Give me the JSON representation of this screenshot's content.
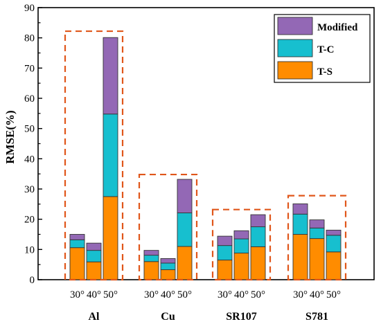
{
  "chart_data": {
    "type": "bar",
    "stacked": true,
    "ylabel": "RMSE(%)",
    "ylim": [
      0,
      90
    ],
    "yticks": [
      0,
      10,
      20,
      30,
      40,
      50,
      60,
      70,
      80,
      90
    ],
    "legend_position": "top-right",
    "grid": false,
    "groups": [
      {
        "label": "Al",
        "categories": [
          "30°",
          "40°",
          "50°"
        ]
      },
      {
        "label": "Cu",
        "categories": [
          "30°",
          "40°",
          "50°"
        ]
      },
      {
        "label": "SR107",
        "categories": [
          "30°",
          "40°",
          "50°"
        ]
      },
      {
        "label": "S781",
        "categories": [
          "30°",
          "40°",
          "50°"
        ]
      }
    ],
    "series": [
      {
        "name": "T-S",
        "color": "#ff8c00",
        "values": [
          10.6,
          5.9,
          27.5,
          6.0,
          3.3,
          11.0,
          6.5,
          8.8,
          10.9,
          15.0,
          13.6,
          9.2
        ]
      },
      {
        "name": "T-C",
        "color": "#17bfcf",
        "values": [
          2.6,
          3.8,
          27.3,
          2.1,
          2.2,
          11.1,
          4.8,
          4.7,
          6.6,
          6.7,
          3.5,
          5.5
        ]
      },
      {
        "name": "Modified",
        "color": "#9368b5",
        "values": [
          1.8,
          2.4,
          25.3,
          1.6,
          1.5,
          11.1,
          3.1,
          2.7,
          4.0,
          3.4,
          2.7,
          1.7
        ]
      }
    ],
    "legend_order": [
      "Modified",
      "T-C",
      "T-S"
    ],
    "group_box_tops": [
      82.2,
      34.8,
      23.2,
      27.8
    ]
  }
}
